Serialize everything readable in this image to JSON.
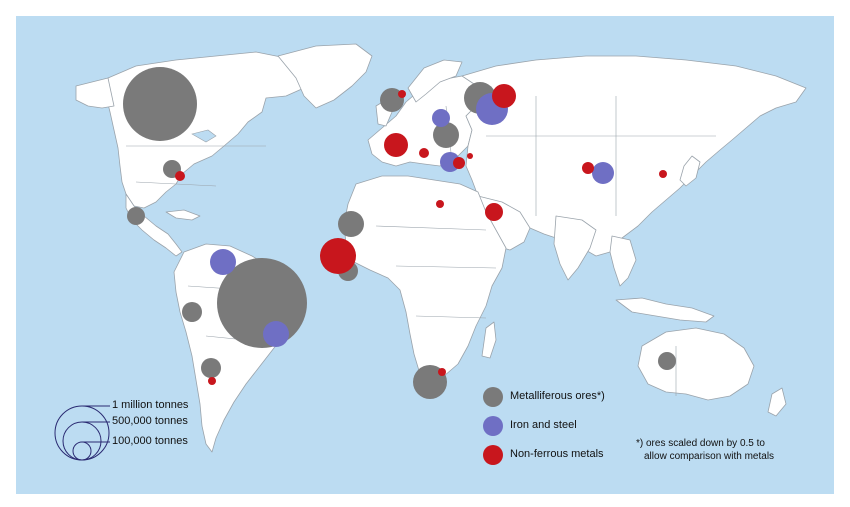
{
  "colors": {
    "ocean": "#bcdcf2",
    "land": "#ffffff",
    "metalliferous_ores": "#7a7a7a",
    "iron_and_steel": "#6f6fc4",
    "non_ferrous_metals": "#c8161d",
    "size_legend_stroke": "#2a2a72"
  },
  "legend": {
    "categories": [
      {
        "key": "metalliferous_ores",
        "label": "Metalliferous ores*)",
        "color": "#7a7a7a"
      },
      {
        "key": "iron_and_steel",
        "label": "Iron and steel",
        "color": "#6f6fc4"
      },
      {
        "key": "non_ferrous_metals",
        "label": "Non-ferrous metals",
        "color": "#c8161d"
      }
    ],
    "footnote_line1": "*) ores scaled down by 0.5 to",
    "footnote_line2": "allow comparison with metals"
  },
  "size_legend": {
    "entries": [
      {
        "label": "1 million tonnes",
        "tonnes": 1000000
      },
      {
        "label": "500,000 tonnes",
        "tonnes": 500000
      },
      {
        "label": "100,000 tonnes",
        "tonnes": 100000
      }
    ]
  }
}
